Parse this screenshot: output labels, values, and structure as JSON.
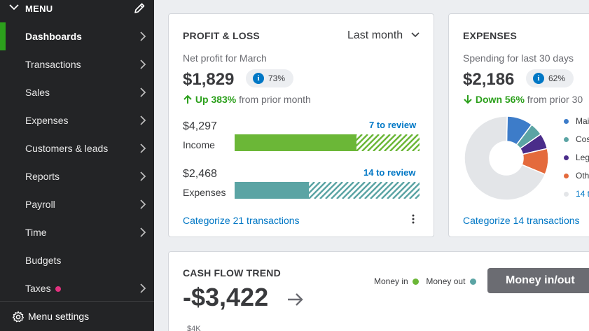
{
  "sidebar": {
    "menu_label": "MENU",
    "items": [
      {
        "label": "Dashboards",
        "active": true,
        "icon": "chevron-right-icon"
      },
      {
        "label": "Transactions",
        "icon": "chevron-right-icon"
      },
      {
        "label": "Sales",
        "icon": "chevron-right-icon"
      },
      {
        "label": "Expenses",
        "icon": "chevron-right-icon"
      },
      {
        "label": "Customers & leads",
        "icon": "chevron-right-icon"
      },
      {
        "label": "Reports",
        "icon": "chevron-right-icon"
      },
      {
        "label": "Payroll",
        "icon": "chevron-right-icon"
      },
      {
        "label": "Time",
        "icon": "chevron-right-icon"
      },
      {
        "label": "Budgets"
      },
      {
        "label": "Taxes",
        "icon": "chevron-right-icon",
        "badge_color": "#e2317f"
      }
    ],
    "settings_label": "Menu settings"
  },
  "profit_loss": {
    "title": "PROFIT & LOSS",
    "period": "Last month",
    "subtitle": "Net profit for March",
    "net_profit": "$1,829",
    "info_icon": "i",
    "percent": "73%",
    "trend_value": "Up 383%",
    "trend_text": "from prior month",
    "income": {
      "amount": "$4,297",
      "label": "Income",
      "review": "7 to review",
      "fill_fraction": 0.66,
      "color": "#6bb737"
    },
    "expenses": {
      "amount": "$2,468",
      "label": "Expenses",
      "review": "14 to review",
      "fill_fraction": 0.4,
      "color": "#5ba4a4"
    },
    "categorize": "Categorize 21 transactions"
  },
  "expenses_card": {
    "title": "EXPENSES",
    "subtitle": "Spending for last 30 days",
    "amount": "$2,186",
    "info_icon": "i",
    "percent": "62%",
    "trend_value": "Down 56%",
    "trend_text": "from prior 30",
    "categorize": "Categorize 14 transactions",
    "legend": [
      {
        "label": "Mai",
        "color": "#3d7cc9"
      },
      {
        "label": "Cos",
        "color": "#5ba4a4"
      },
      {
        "label": "Leg",
        "color": "#4a2c8a"
      },
      {
        "label": "Oth",
        "color": "#e46a3c"
      },
      {
        "label": "14 t",
        "color": "#e3e5e8",
        "is_link": true
      }
    ],
    "donut": [
      {
        "value": 10,
        "color": "#3d7cc9"
      },
      {
        "value": 5,
        "color": "#5ba4a4"
      },
      {
        "value": 6,
        "color": "#4a2c8a"
      },
      {
        "value": 10,
        "color": "#e46a3c"
      },
      {
        "value": 69,
        "color": "#e3e5e8"
      }
    ]
  },
  "cash_flow": {
    "title": "CASH FLOW TREND",
    "amount": "-$3,422",
    "money_in": "Money in",
    "money_in_color": "#6bb737",
    "money_out": "Money out",
    "money_out_color": "#5ba4a4",
    "button": "Money in/out",
    "axis_label": "$4K"
  }
}
